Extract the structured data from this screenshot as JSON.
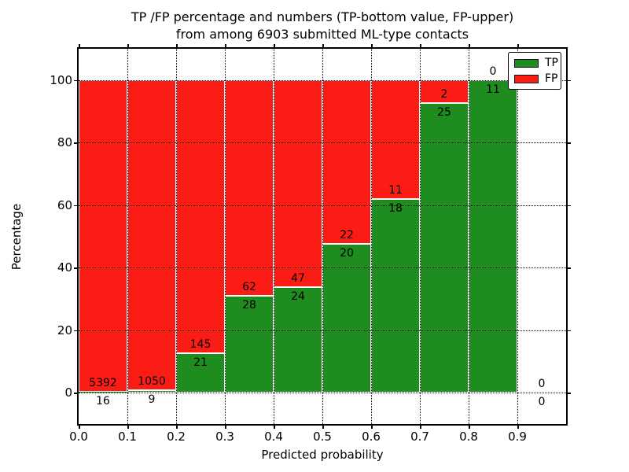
{
  "title": {
    "line1": "TP /FP percentage and numbers (TP-bottom value, FP-upper)",
    "line2": "from among 6903 submitted ML-type contacts"
  },
  "chart_data": {
    "type": "bar",
    "stacked": true,
    "title": "TP /FP percentage and numbers (TP-bottom value, FP-upper) from among 6903 submitted ML-type contacts",
    "xlabel": "Predicted probability",
    "ylabel": "Percentage",
    "total_contacts": 6903,
    "categories": [
      "0.0-0.1",
      "0.1-0.2",
      "0.2-0.3",
      "0.3-0.4",
      "0.4-0.5",
      "0.5-0.6",
      "0.6-0.7",
      "0.7-0.8",
      "0.8-0.9",
      "0.9-1.0"
    ],
    "bin_edges": [
      0.0,
      0.1,
      0.2,
      0.3,
      0.4,
      0.5,
      0.6,
      0.7,
      0.8,
      0.9,
      1.0
    ],
    "series": [
      {
        "name": "TP",
        "color": "#1e8c1e",
        "counts": [
          16,
          9,
          21,
          28,
          24,
          20,
          18,
          25,
          11,
          0
        ],
        "pct": [
          0.3,
          0.85,
          12.65,
          31.11,
          33.8,
          47.62,
          62.07,
          92.59,
          100.0,
          0.0
        ]
      },
      {
        "name": "FP",
        "color": "#fb1d15",
        "counts": [
          5392,
          1050,
          145,
          62,
          47,
          22,
          11,
          2,
          0,
          0
        ],
        "pct": [
          99.7,
          99.15,
          87.35,
          68.89,
          66.2,
          52.38,
          37.93,
          7.41,
          0.0,
          0.0
        ]
      }
    ],
    "xticks": [
      "0.0",
      "0.1",
      "0.2",
      "0.3",
      "0.4",
      "0.5",
      "0.6",
      "0.7",
      "0.8",
      "0.9"
    ],
    "yticks": [
      0,
      20,
      40,
      60,
      80,
      100
    ],
    "xlim": [
      0.0,
      1.0
    ],
    "ylim": [
      -10,
      110
    ],
    "grid": "dotted, drawn over bars",
    "bar_edge_color": "#ffffff",
    "legend": {
      "position": "upper right",
      "entries": [
        "TP",
        "FP"
      ]
    }
  }
}
